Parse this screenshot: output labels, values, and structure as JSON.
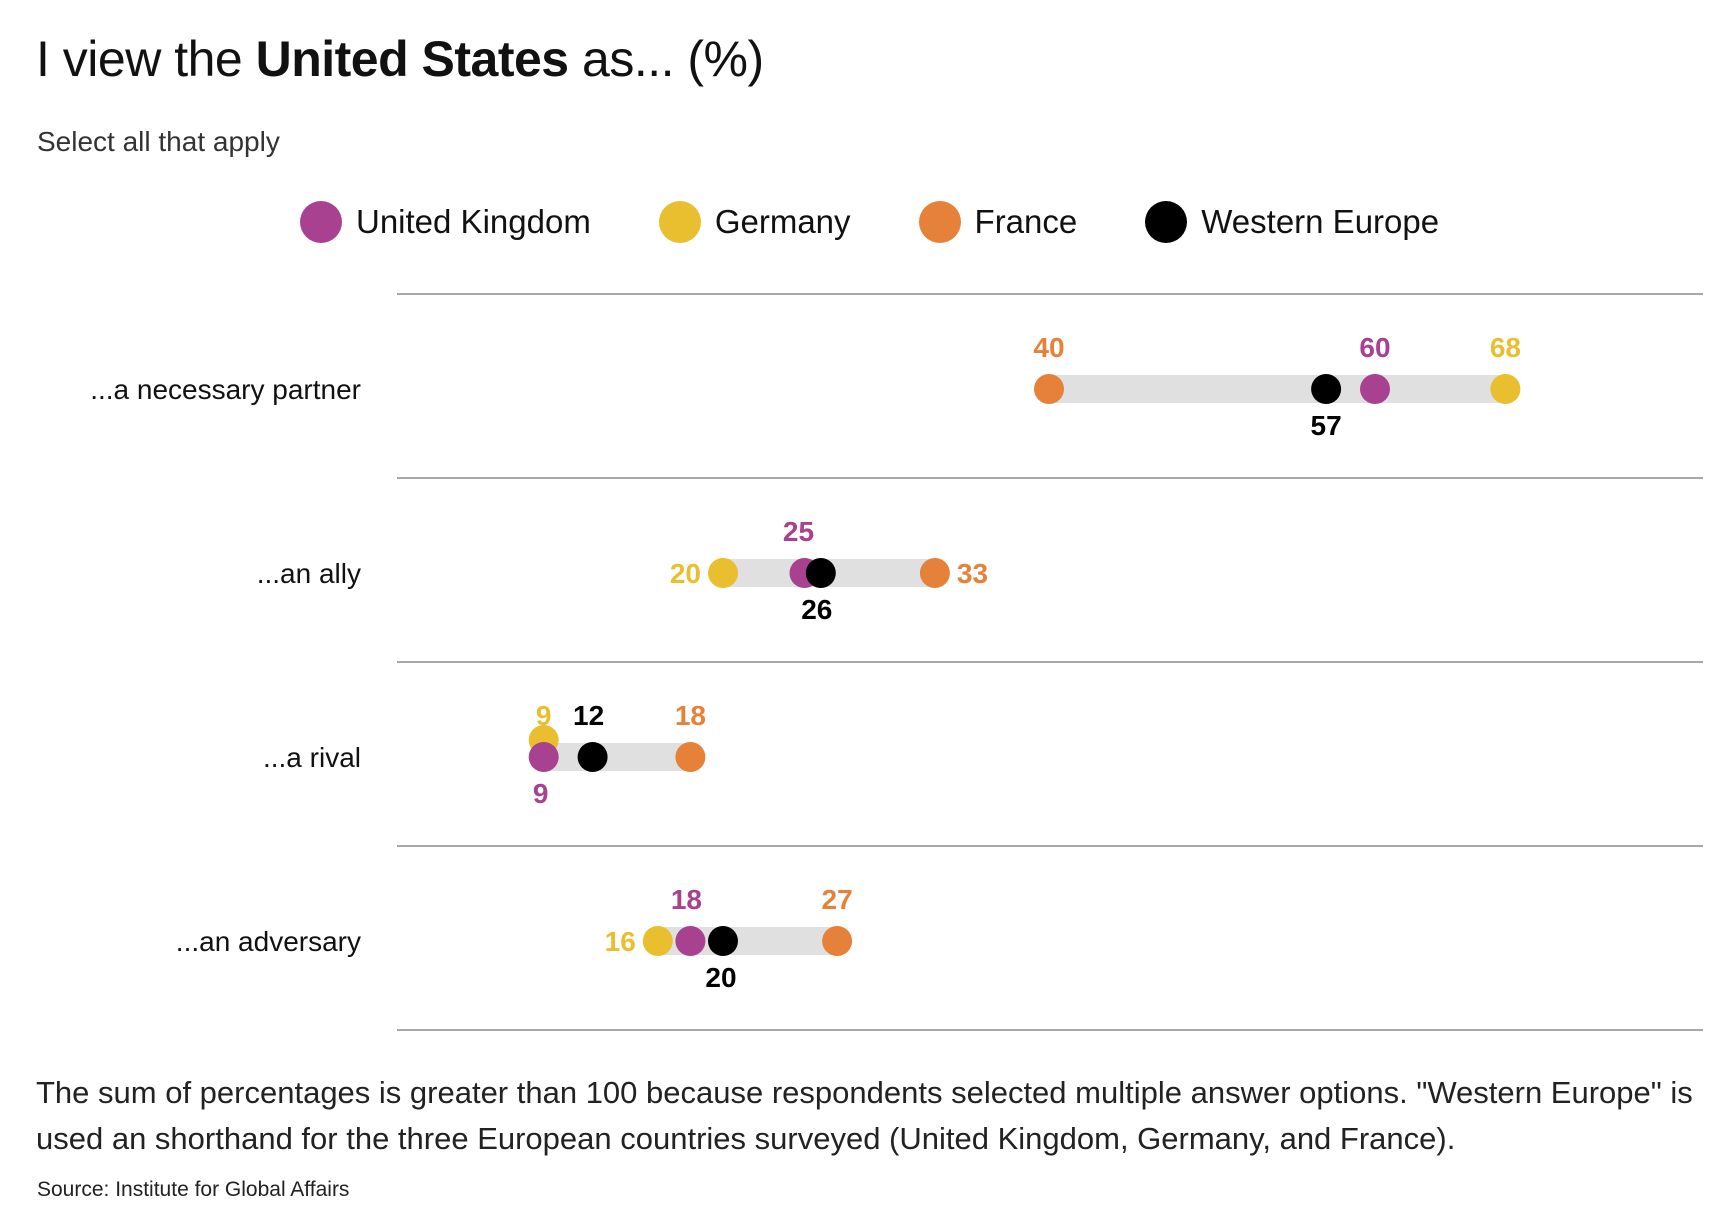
{
  "title": {
    "pre": "I view the ",
    "bold": "United States",
    "post": " as... (%)"
  },
  "subtitle": "Select all that apply",
  "note": "The sum of percentages is greater than 100 because respondents selected multiple answer options. \"Western Europe\" is used an shorthand for the three European countries surveyed (United Kingdom, Germany, and France).",
  "source": "Source: Institute for Global Affairs",
  "chart_data": {
    "type": "dot-range",
    "categories": [
      "...a necessary partner",
      "...an ally",
      "...a rival",
      "...an adversary"
    ],
    "series": [
      {
        "name": "United Kingdom",
        "color": "#a8418f",
        "values": [
          60,
          25,
          9,
          18
        ]
      },
      {
        "name": "Germany",
        "color": "#e9bf2f",
        "values": [
          68,
          20,
          9,
          16
        ]
      },
      {
        "name": "France",
        "color": "#e6813a",
        "values": [
          40,
          33,
          18,
          27
        ]
      },
      {
        "name": "Western Europe",
        "color": "#000000",
        "values": [
          57,
          26,
          12,
          20
        ]
      }
    ],
    "xlim": [
      0,
      70
    ],
    "legend": "top",
    "grid": false
  }
}
